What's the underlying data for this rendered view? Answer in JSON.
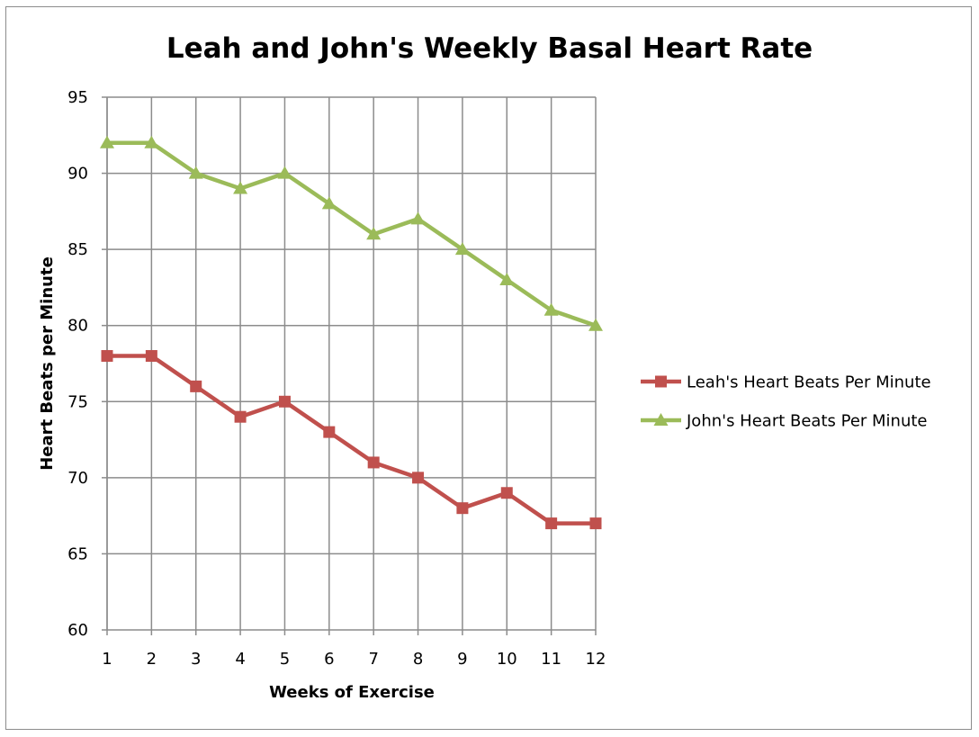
{
  "chart_data": {
    "type": "line",
    "title": "Leah and John's Weekly Basal Heart Rate",
    "xlabel": "Weeks of Exercise",
    "ylabel": "Heart Beats per Minute",
    "x": [
      1,
      2,
      3,
      4,
      5,
      6,
      7,
      8,
      9,
      10,
      11,
      12
    ],
    "x_tick_labels": [
      "1",
      "2",
      "3",
      "4",
      "5",
      "6",
      "7",
      "8",
      "9",
      "10",
      "11",
      "12"
    ],
    "ylim": [
      60,
      95
    ],
    "y_ticks": [
      60,
      65,
      70,
      75,
      80,
      85,
      90,
      95
    ],
    "y_tick_labels": [
      "60",
      "65",
      "70",
      "75",
      "80",
      "85",
      "90",
      "95"
    ],
    "grid": true,
    "legend_position": "right",
    "series": [
      {
        "name": "Leah's Heart Beats Per Minute",
        "values": [
          78,
          78,
          76,
          74,
          75,
          73,
          71,
          70,
          68,
          69,
          67,
          67
        ],
        "color": "#c0504d",
        "marker": "square"
      },
      {
        "name": "John's Heart Beats Per Minute",
        "values": [
          92,
          92,
          90,
          89,
          90,
          88,
          86,
          87,
          85,
          83,
          81,
          80
        ],
        "color": "#9bbb59",
        "marker": "triangle"
      }
    ],
    "colors": {
      "grid": "#8c8c8c",
      "axis": "#8c8c8c",
      "frame": "#8c8c8c"
    }
  }
}
